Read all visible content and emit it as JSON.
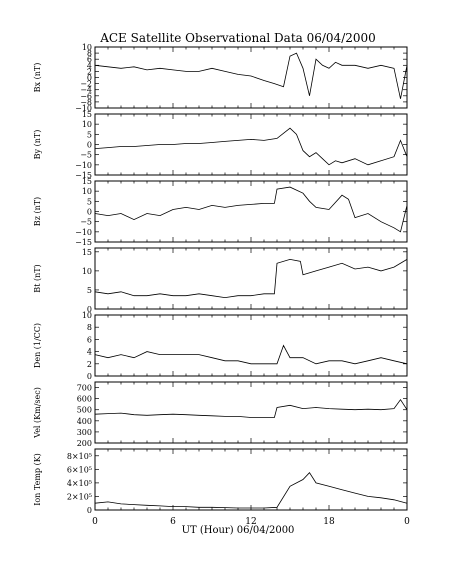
{
  "chart_data": {
    "type": "line",
    "title": "ACE Satellite Observational Data   06/04/2000",
    "xlabel": "UT (Hour)   06/04/2000",
    "x_ticks": [
      "0",
      "6",
      "12",
      "18",
      "0"
    ],
    "xlim": [
      0,
      24
    ],
    "panels": [
      {
        "ylabel": "Bx (nT)",
        "ylim": [
          -10,
          10
        ],
        "yticks": [
          -10,
          -8,
          -6,
          -4,
          -2,
          0,
          2,
          4,
          6,
          8,
          10
        ],
        "ytick_labels": [
          "−10",
          "−8",
          "−6",
          "−4",
          "−2",
          "0",
          "2",
          "4",
          "6",
          "8",
          "10"
        ],
        "series": [
          {
            "x": [
              0,
              1,
              2,
              3,
              4,
              5,
              6,
              7,
              8,
              9,
              10,
              11,
              12,
              13,
              13.8,
              14.5,
              15,
              15.5,
              16,
              16.5,
              17,
              17.5,
              18,
              18.5,
              19,
              20,
              21,
              22,
              23,
              23.5,
              24
            ],
            "y": [
              4,
              3.5,
              3,
              3.5,
              2.5,
              3,
              2.5,
              2,
              2,
              3,
              2,
              1,
              0.5,
              -1,
              -2,
              -3,
              7,
              8,
              3,
              -6,
              6,
              4,
              3,
              5,
              4,
              4,
              3,
              4,
              3,
              -7,
              4
            ]
          }
        ]
      },
      {
        "ylabel": "By (nT)",
        "ylim": [
          -15,
          15
        ],
        "yticks": [
          -15,
          -10,
          -5,
          0,
          5,
          10,
          15
        ],
        "ytick_labels": [
          "−15",
          "−10",
          "−5",
          "0",
          "5",
          "10",
          "15"
        ],
        "series": [
          {
            "x": [
              0,
              1,
              2,
              3,
              4,
              5,
              6,
              7,
              8,
              9,
              10,
              11,
              12,
              13,
              14,
              15,
              15.5,
              16,
              16.5,
              17,
              17.5,
              18,
              18.5,
              19,
              20,
              21,
              22,
              23,
              23.5,
              24
            ],
            "y": [
              -2,
              -1.5,
              -1,
              -1,
              -0.5,
              0,
              0,
              0.5,
              0.5,
              1,
              1.5,
              2,
              2.5,
              2,
              3,
              8,
              5,
              -3,
              -6,
              -4,
              -7,
              -10,
              -8,
              -9,
              -7,
              -10,
              -8,
              -6,
              2,
              -6
            ]
          }
        ]
      },
      {
        "ylabel": "Bz (nT)",
        "ylim": [
          -15,
          15
        ],
        "yticks": [
          -15,
          -10,
          -5,
          0,
          5,
          10,
          15
        ],
        "ytick_labels": [
          "−15",
          "−10",
          "−5",
          "0",
          "5",
          "10",
          "15"
        ],
        "series": [
          {
            "x": [
              0,
              1,
              2,
              3,
              4,
              5,
              6,
              7,
              8,
              9,
              10,
              11,
              12,
              13,
              13.8,
              14,
              15,
              16,
              16.5,
              17,
              18,
              19,
              19.5,
              20,
              21,
              22,
              23,
              23.5,
              24
            ],
            "y": [
              -1,
              -2,
              -1,
              -4,
              -1,
              -2,
              1,
              2,
              1,
              3,
              2,
              3,
              3.5,
              4,
              4,
              11,
              12,
              9,
              5,
              2,
              1,
              8,
              6,
              -3,
              -1,
              -5,
              -8,
              -10,
              3
            ]
          }
        ]
      },
      {
        "ylabel": "Bt (nT)",
        "ylim": [
          0,
          16
        ],
        "yticks": [
          0,
          5,
          10,
          15
        ],
        "ytick_labels": [
          "0",
          "5",
          "10",
          "15"
        ],
        "series": [
          {
            "x": [
              0,
              1,
              2,
              3,
              4,
              5,
              6,
              7,
              8,
              9,
              10,
              11,
              12,
              13,
              13.8,
              14,
              15,
              15.8,
              16,
              17,
              18,
              19,
              20,
              21,
              22,
              23,
              24
            ],
            "y": [
              4.5,
              4,
              4.5,
              3.5,
              3.5,
              4,
              3.5,
              3.5,
              4,
              3.5,
              3,
              3.5,
              3.5,
              4,
              4,
              12,
              13,
              12.5,
              9,
              10,
              11,
              12,
              10.5,
              11,
              10,
              11,
              13
            ]
          }
        ]
      },
      {
        "ylabel": "Den (1/CC)",
        "ylim": [
          0,
          10
        ],
        "yticks": [
          0,
          2,
          4,
          6,
          8,
          10
        ],
        "ytick_labels": [
          "0",
          "2",
          "4",
          "6",
          "8",
          "10"
        ],
        "series": [
          {
            "x": [
              0,
              1,
              2,
              3,
              4,
              5,
              6,
              7,
              8,
              9,
              10,
              11,
              12,
              13,
              14,
              14.5,
              15,
              16,
              17,
              18,
              19,
              20,
              21,
              22,
              23,
              24
            ],
            "y": [
              3.5,
              3,
              3.5,
              3,
              4,
              3.5,
              3.5,
              3.5,
              3.5,
              3,
              2.5,
              2.5,
              2,
              2,
              2,
              5,
              3,
              3,
              2,
              2.5,
              2.5,
              2,
              2.5,
              3,
              2.5,
              2
            ]
          }
        ]
      },
      {
        "ylabel": "Vel (Km/sec)",
        "ylim": [
          200,
          750
        ],
        "yticks": [
          200,
          300,
          400,
          500,
          600,
          700
        ],
        "ytick_labels": [
          "200",
          "300",
          "400",
          "500",
          "600",
          "700"
        ],
        "series": [
          {
            "x": [
              0,
              1,
              2,
              3,
              4,
              5,
              6,
              7,
              8,
              9,
              10,
              11,
              12,
              13,
              13.8,
              14,
              15,
              16,
              17,
              18,
              19,
              20,
              21,
              22,
              23,
              23.5,
              24
            ],
            "y": [
              460,
              465,
              470,
              455,
              450,
              455,
              460,
              455,
              450,
              445,
              440,
              440,
              430,
              430,
              430,
              520,
              540,
              510,
              520,
              510,
              505,
              500,
              505,
              500,
              510,
              590,
              500
            ]
          }
        ]
      },
      {
        "ylabel": "Ion Temp (K)",
        "ylim": [
          0,
          900000
        ],
        "yticks": [
          0,
          200000,
          400000,
          600000,
          800000
        ],
        "ytick_labels": [
          "0",
          "2×10⁵",
          "4×10⁵",
          "6×10⁵",
          "8×10⁵"
        ],
        "series": [
          {
            "x": [
              0,
              1,
              2,
              3,
              4,
              5,
              6,
              7,
              8,
              9,
              10,
              11,
              12,
              13,
              14,
              15,
              16,
              16.5,
              17,
              18,
              19,
              20,
              21,
              22,
              23,
              24
            ],
            "y": [
              100000,
              120000,
              90000,
              80000,
              70000,
              60000,
              50000,
              50000,
              40000,
              40000,
              35000,
              30000,
              30000,
              30000,
              40000,
              350000,
              450000,
              550000,
              400000,
              350000,
              300000,
              250000,
              200000,
              180000,
              150000,
              100000
            ]
          }
        ]
      }
    ]
  }
}
